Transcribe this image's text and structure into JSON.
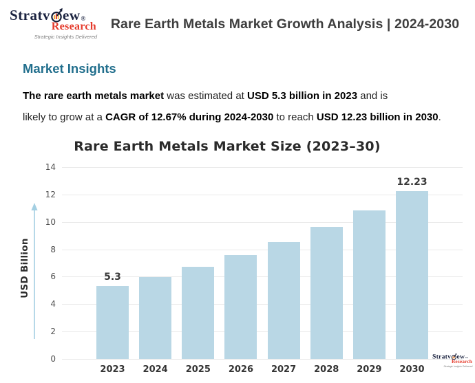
{
  "header": {
    "title": "Rare Earth Metals Market Growth Analysis | 2024-2030",
    "logo": {
      "brand": "Stratview",
      "brand_left": "Stratv",
      "brand_right": "ew",
      "mark": "®",
      "sub_brand": "Research",
      "tagline": "Strategic Insights Delivered"
    }
  },
  "insights": {
    "heading": "Market Insights",
    "line1": {
      "b1": "The rare earth metals market",
      "t1": " was estimated at ",
      "b2": "USD 5.3 billion in 2023",
      "t2": " and is"
    },
    "line2": {
      "t1": "likely to grow at a ",
      "b1": "CAGR of 12.67% during 2024-2030",
      "t2": " to reach ",
      "b2": "USD 12.23 billion in 2030",
      "t3": "."
    }
  },
  "chart_data": {
    "type": "bar",
    "title": "Rare Earth Metals Market Size (2023–30)",
    "categories": [
      "2023",
      "2024",
      "2025",
      "2026",
      "2027",
      "2028",
      "2029",
      "2030"
    ],
    "values": [
      5.3,
      5.97,
      6.73,
      7.58,
      8.54,
      9.62,
      10.84,
      12.23
    ],
    "data_labels": {
      "2023": "5.3",
      "2030": "12.23"
    },
    "ylabel": "USD Billion",
    "xlabel": "",
    "yticks": [
      0,
      2,
      4,
      6,
      8,
      10,
      12,
      14
    ],
    "ylim": [
      0,
      14
    ],
    "grid": true,
    "legend": false,
    "bar_color": "#b9d7e5",
    "axis_arrow_color": "#a4cfe2"
  },
  "footer_logo": {
    "brand_left": "Stratv",
    "brand_right": "ew",
    "mark": "™",
    "sub_brand": "Research",
    "tagline": "Strategic Insights Delivered"
  }
}
